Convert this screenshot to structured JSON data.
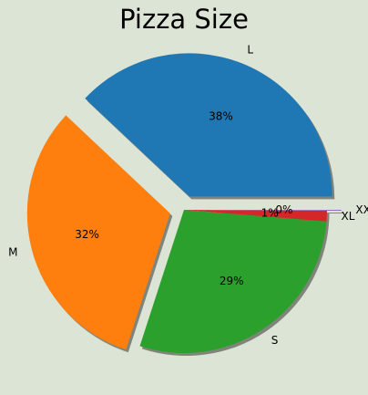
{
  "chart_data": {
    "type": "pie",
    "title": "Pizza Size",
    "categories": [
      "L",
      "M",
      "S",
      "XL",
      "XXL"
    ],
    "values": [
      38.0,
      32.0,
      28.7,
      1.2,
      0.1
    ],
    "percent_labels": [
      "38%",
      "32%",
      "29%",
      "1%",
      "0%"
    ],
    "explode": [
      0.1,
      0.1,
      0,
      0,
      0.1
    ],
    "start_angle_deg": 0,
    "direction": "counterclockwise",
    "shadow": true,
    "colors": [
      "#1f77b4",
      "#ff7f0e",
      "#2ca02c",
      "#d62728",
      "#9467bd"
    ],
    "legend": "none"
  }
}
